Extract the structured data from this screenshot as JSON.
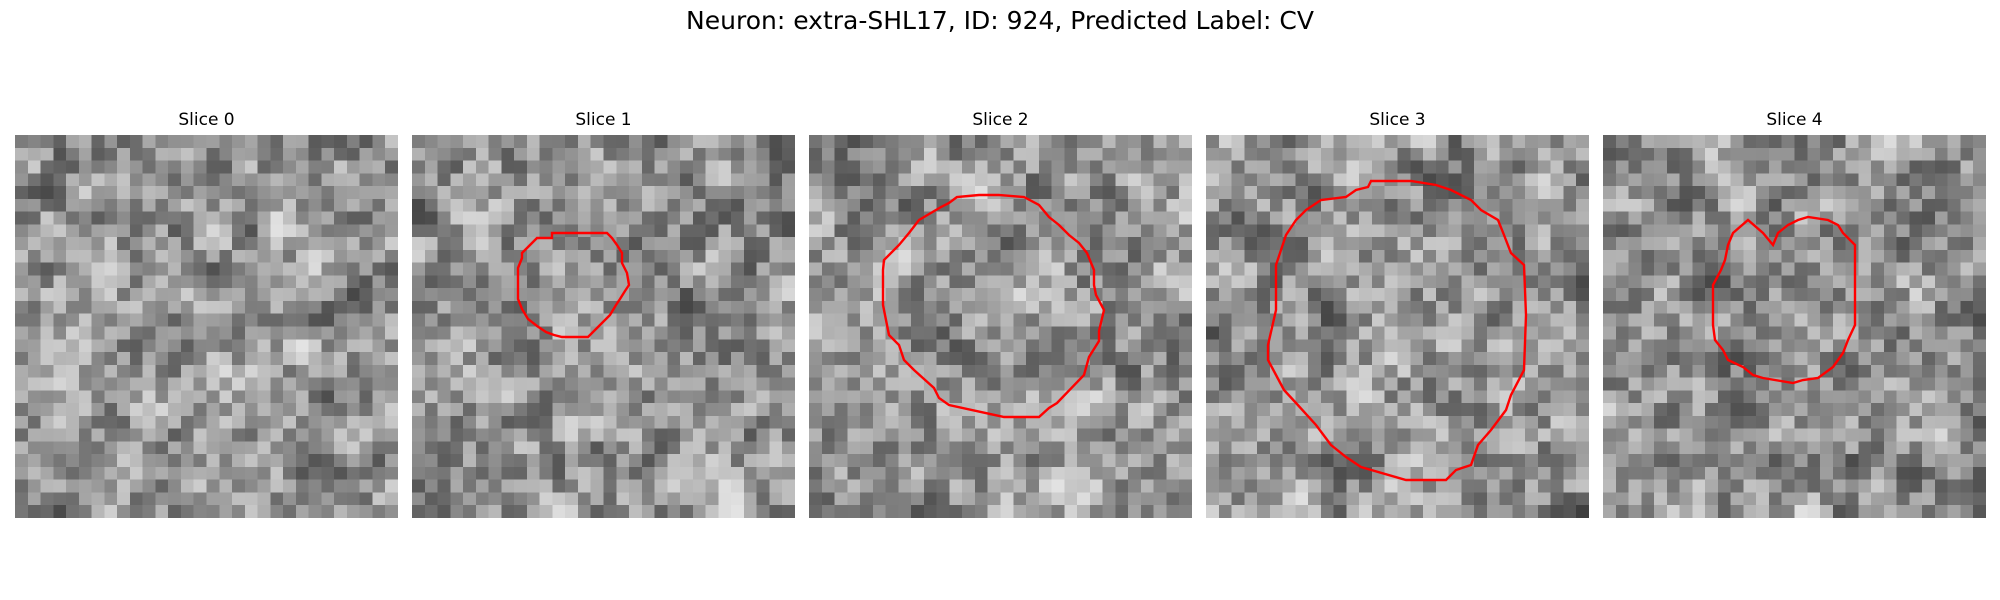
{
  "figure": {
    "title": "Neuron: extra-SHL17, ID: 924, Predicted Label: CV"
  },
  "panels": [
    {
      "title": "Slice 0",
      "seed": 11,
      "contour": false,
      "contour_color": "#ff0000"
    },
    {
      "title": "Slice 1",
      "seed": 23,
      "contour": true,
      "contour_color": "#ff0000"
    },
    {
      "title": "Slice 2",
      "seed": 37,
      "contour": true,
      "contour_color": "#ff0000"
    },
    {
      "title": "Slice 3",
      "seed": 41,
      "contour": true,
      "contour_color": "#ff0000"
    },
    {
      "title": "Slice 4",
      "seed": 59,
      "contour": true,
      "contour_color": "#ff0000"
    }
  ]
}
